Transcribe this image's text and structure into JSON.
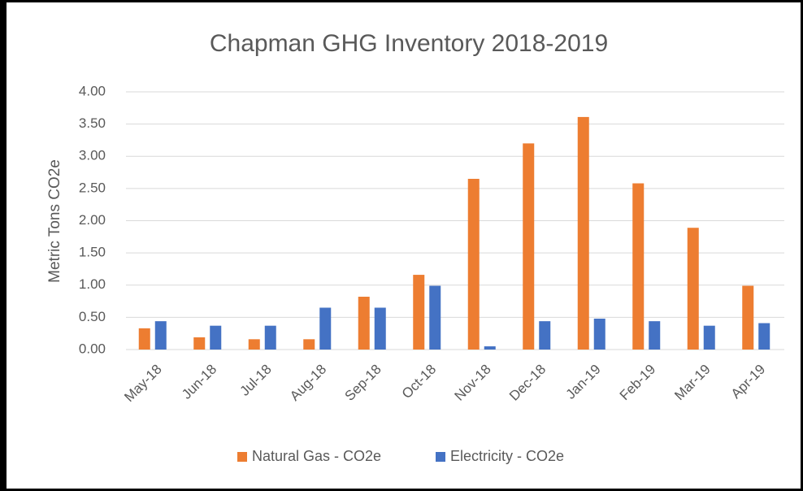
{
  "chart_data": {
    "type": "bar",
    "title": "Chapman GHG Inventory 2018-2019",
    "y_label": "Metric Tons CO2e",
    "categories": [
      "May-18",
      "Jun-18",
      "Jul-18",
      "Aug-18",
      "Sep-18",
      "Oct-18",
      "Nov-18",
      "Dec-18",
      "Jan-19",
      "Feb-19",
      "Mar-19",
      "Apr-19"
    ],
    "series": [
      {
        "name": "Natural Gas - CO2e",
        "color": "#ed7d31",
        "values": [
          0.33,
          0.19,
          0.16,
          0.16,
          0.82,
          1.16,
          2.65,
          3.2,
          3.61,
          2.58,
          1.89,
          0.99
        ]
      },
      {
        "name": "Electricity - CO2e",
        "color": "#4472c4",
        "values": [
          0.44,
          0.37,
          0.37,
          0.65,
          0.65,
          0.99,
          0.05,
          0.44,
          0.48,
          0.44,
          0.37,
          0.41
        ]
      }
    ],
    "ylim": [
      0,
      4
    ],
    "yticks": [
      {
        "value": 0,
        "label": "0.00"
      },
      {
        "value": 0.5,
        "label": "0.50"
      },
      {
        "value": 1,
        "label": "1.00"
      },
      {
        "value": 1.5,
        "label": "1.50"
      },
      {
        "value": 2,
        "label": "2.00"
      },
      {
        "value": 2.5,
        "label": "2.50"
      },
      {
        "value": 3,
        "label": "3.00"
      },
      {
        "value": 3.5,
        "label": "3.50"
      },
      {
        "value": 4,
        "label": "4.00"
      }
    ],
    "grid": true,
    "legend": "bottom"
  }
}
